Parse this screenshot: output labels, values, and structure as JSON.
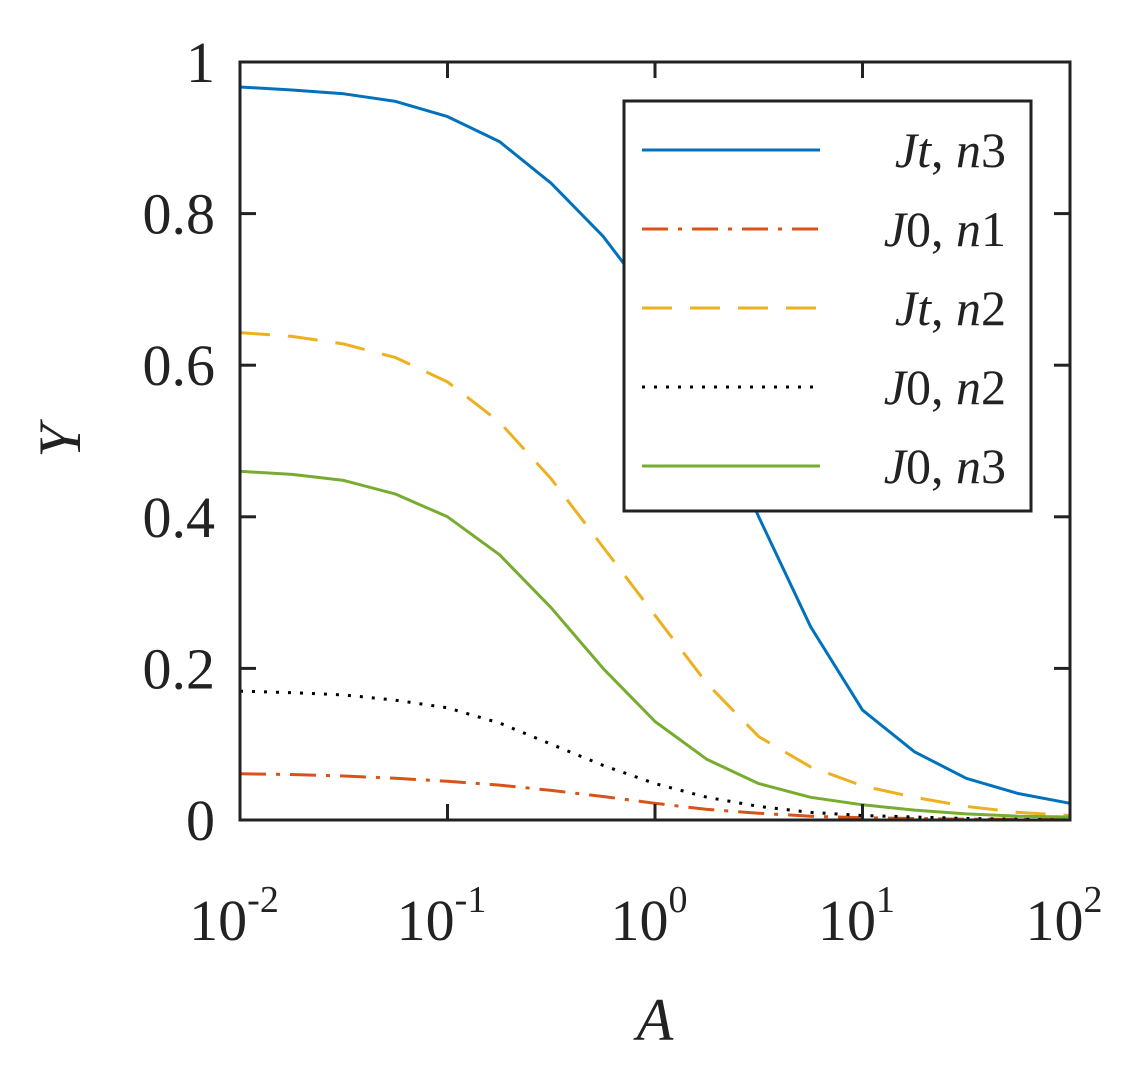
{
  "chart_data": {
    "type": "line",
    "xlabel": "A",
    "ylabel": "Y",
    "xscale": "log",
    "xlim": [
      0.01,
      100
    ],
    "ylim": [
      0,
      1
    ],
    "grid": false,
    "legend_position": "top-right",
    "x_ticks": [
      {
        "base": "10",
        "exp": "-2",
        "value": 0.01
      },
      {
        "base": "10",
        "exp": "-1",
        "value": 0.1
      },
      {
        "base": "10",
        "exp": "0",
        "value": 1
      },
      {
        "base": "10",
        "exp": "1",
        "value": 10
      },
      {
        "base": "10",
        "exp": "2",
        "value": 100
      }
    ],
    "y_ticks": [
      {
        "label": "0",
        "value": 0
      },
      {
        "label": "0.2",
        "value": 0.2
      },
      {
        "label": "0.4",
        "value": 0.4
      },
      {
        "label": "0.6",
        "value": 0.6
      },
      {
        "label": "0.8",
        "value": 0.8
      },
      {
        "label": "1",
        "value": 1
      }
    ],
    "x": [
      0.01,
      0.0178,
      0.0316,
      0.0562,
      0.1,
      0.178,
      0.316,
      0.562,
      1,
      1.78,
      3.16,
      5.62,
      10,
      17.8,
      31.6,
      56.2,
      100
    ],
    "series": [
      {
        "name_a": "Jt",
        "name_b": "3",
        "color": "#0072BD",
        "dash": "solid",
        "values": [
          0.967,
          0.963,
          0.958,
          0.948,
          0.928,
          0.895,
          0.84,
          0.77,
          0.68,
          0.555,
          0.4,
          0.255,
          0.145,
          0.09,
          0.055,
          0.035,
          0.022
        ]
      },
      {
        "name_a": "J0",
        "name_b": "1",
        "color": "#D95319",
        "dash": "dashdot",
        "values": [
          0.061,
          0.06,
          0.058,
          0.055,
          0.051,
          0.046,
          0.039,
          0.031,
          0.022,
          0.014,
          0.009,
          0.005,
          0.003,
          0.002,
          0.001,
          0.001,
          0.001
        ]
      },
      {
        "name_a": "Jt",
        "name_b": "2",
        "color": "#EDB120",
        "dash": "dashed",
        "values": [
          0.643,
          0.638,
          0.628,
          0.61,
          0.578,
          0.525,
          0.45,
          0.36,
          0.27,
          0.18,
          0.11,
          0.07,
          0.045,
          0.03,
          0.018,
          0.01,
          0.006
        ]
      },
      {
        "name_a": "J0",
        "name_b": "2",
        "color": "#000000",
        "dash": "dotted",
        "values": [
          0.17,
          0.168,
          0.165,
          0.158,
          0.148,
          0.128,
          0.1,
          0.072,
          0.048,
          0.03,
          0.018,
          0.01,
          0.006,
          0.004,
          0.002,
          0.001,
          0.001
        ]
      },
      {
        "name_a": "J0",
        "name_b": "3",
        "color": "#77AC30",
        "dash": "solid",
        "values": [
          0.46,
          0.456,
          0.448,
          0.43,
          0.4,
          0.35,
          0.28,
          0.2,
          0.13,
          0.08,
          0.048,
          0.03,
          0.02,
          0.013,
          0.008,
          0.005,
          0.004
        ]
      }
    ],
    "legend_n_label": "n",
    "legend_sep": ", "
  }
}
